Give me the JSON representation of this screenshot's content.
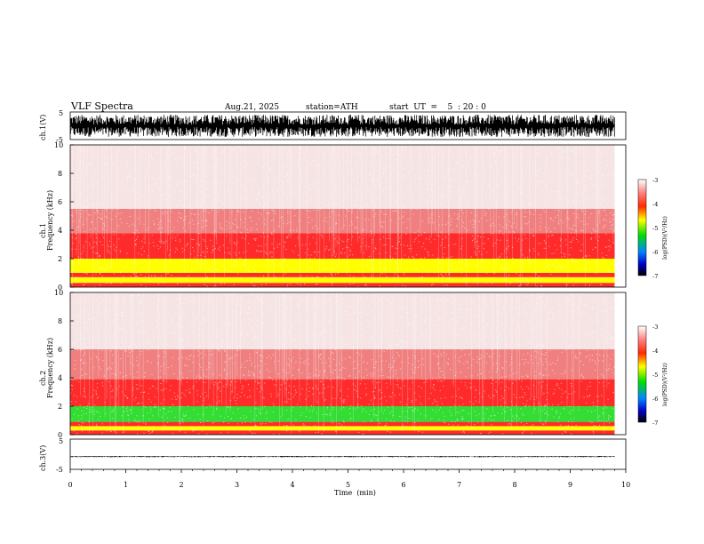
{
  "header": {
    "title": "VLF  Spectra",
    "date": "Aug.21, 2025",
    "station": "station=ATH",
    "start": "start  UT  =    5  : 20 : 0"
  },
  "chart_data": [
    {
      "type": "line",
      "panel": "ch1-waveform",
      "ylabel": "ch.1(V)",
      "ylim": [
        -5,
        5
      ],
      "y_ticks": [
        "5",
        "-5"
      ],
      "x_range_min": [
        0,
        9.8
      ],
      "amplitude_envelope": [
        -4,
        4
      ],
      "color": "#000000"
    },
    {
      "type": "heatmap",
      "panel": "ch1-spectrogram",
      "ylabel": "ch.1\nFrequency  (kHz)",
      "ylim": [
        0,
        10
      ],
      "y_ticks": [
        "0",
        "2",
        "4",
        "6",
        "8",
        "10"
      ],
      "x_range_min": [
        0,
        9.8
      ],
      "bands_khz": [
        {
          "from": 0.0,
          "to": 0.3,
          "level": "red"
        },
        {
          "from": 0.3,
          "to": 0.7,
          "level": "yellow"
        },
        {
          "from": 0.7,
          "to": 1.0,
          "level": "red"
        },
        {
          "from": 1.0,
          "to": 2.0,
          "level": "yellow"
        },
        {
          "from": 2.0,
          "to": 3.8,
          "level": "red"
        },
        {
          "from": 3.8,
          "to": 5.5,
          "level": "red-light"
        },
        {
          "from": 5.5,
          "to": 10.0,
          "level": "pale"
        }
      ],
      "colorbar": {
        "label": "log(PSD)(V²/Hz)",
        "ticks": [
          "-3",
          "-4",
          "-5",
          "-6",
          "-7"
        ],
        "range": [
          -7,
          -3
        ]
      }
    },
    {
      "type": "heatmap",
      "panel": "ch2-spectrogram",
      "ylabel": "ch.2\nFrequency  (kHz)",
      "ylim": [
        0,
        10
      ],
      "y_ticks": [
        "0",
        "2",
        "4",
        "6",
        "8",
        "10"
      ],
      "x_range_min": [
        0,
        9.8
      ],
      "bands_khz": [
        {
          "from": 0.0,
          "to": 0.3,
          "level": "red"
        },
        {
          "from": 0.3,
          "to": 0.6,
          "level": "yellow"
        },
        {
          "from": 0.6,
          "to": 0.9,
          "level": "red"
        },
        {
          "from": 0.9,
          "to": 2.0,
          "level": "green"
        },
        {
          "from": 2.0,
          "to": 3.9,
          "level": "red"
        },
        {
          "from": 3.9,
          "to": 6.0,
          "level": "red-light"
        },
        {
          "from": 6.0,
          "to": 10.0,
          "level": "pale"
        }
      ],
      "colorbar": {
        "label": "log(PSD)(V²/Hz)",
        "ticks": [
          "-3",
          "-4",
          "-5",
          "-6",
          "-7"
        ],
        "range": [
          -7,
          -3
        ]
      }
    },
    {
      "type": "line",
      "panel": "ch3-waveform",
      "ylabel": "ch.3(V)",
      "ylim": [
        -5,
        5
      ],
      "y_ticks": [
        "5",
        "-5"
      ],
      "x_range_min": [
        0,
        9.8
      ],
      "amplitude_envelope": [
        -0.3,
        0.1
      ],
      "baseline": -0.8,
      "color": "#000000",
      "xlabel": "Time  (min)",
      "x_ticks": [
        "0",
        "1",
        "2",
        "3",
        "4",
        "5",
        "6",
        "7",
        "8",
        "9",
        "10"
      ],
      "xlim": [
        0,
        10
      ]
    }
  ],
  "colors": {
    "pale": "#f6e4e4",
    "red-light": "#f08080",
    "red": "#ff2a2a",
    "yellow": "#ffff00",
    "green": "#33dd33"
  }
}
